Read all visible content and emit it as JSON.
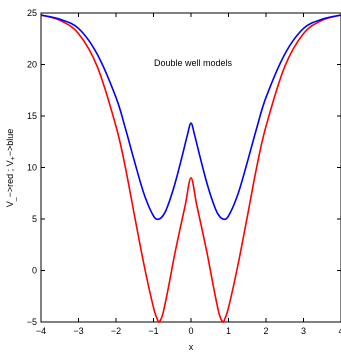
{
  "chart_data": {
    "type": "line",
    "annotation": "Double well models",
    "xlabel": "x",
    "ylabel_parts": [
      "V",
      "_",
      "−>red ; V",
      "+",
      "−>blue"
    ],
    "xlim": [
      -4,
      4
    ],
    "ylim": [
      -5,
      25
    ],
    "grid": false,
    "x_ticks": [
      -4,
      -3,
      -2,
      -1,
      0,
      1,
      2,
      3,
      4
    ],
    "y_ticks": [
      -5,
      0,
      5,
      10,
      15,
      20,
      25
    ],
    "series": [
      {
        "color": "#ff0000",
        "x": [
          -4.0,
          -3.5,
          -3.0,
          -2.5,
          -2.0,
          -1.75,
          -1.5,
          -1.25,
          -1.0,
          -0.9,
          -0.85,
          -0.75,
          -0.6,
          -0.45,
          -0.3,
          -0.15,
          0.0,
          0.15,
          0.3,
          0.45,
          0.6,
          0.75,
          0.85,
          0.9,
          1.0,
          1.25,
          1.5,
          1.75,
          2.0,
          2.5,
          3.0,
          3.5,
          4.0
        ],
        "y": [
          24.8,
          24.3,
          23.0,
          19.8,
          14.0,
          10.0,
          5.2,
          0.5,
          -3.6,
          -4.7,
          -5.0,
          -4.2,
          -1.6,
          1.3,
          3.9,
          6.4,
          9.0,
          6.4,
          3.9,
          1.3,
          -1.6,
          -4.2,
          -5.0,
          -4.7,
          -3.6,
          0.5,
          5.2,
          10.0,
          14.0,
          19.8,
          23.0,
          24.3,
          24.8
        ]
      },
      {
        "color": "#0000ff",
        "x": [
          -4.0,
          -3.5,
          -3.0,
          -2.5,
          -2.0,
          -1.75,
          -1.5,
          -1.25,
          -1.0,
          -0.85,
          -0.7,
          -0.55,
          -0.4,
          -0.25,
          -0.1,
          0.0,
          0.1,
          0.25,
          0.4,
          0.55,
          0.7,
          0.85,
          1.0,
          1.25,
          1.5,
          1.75,
          2.0,
          2.5,
          3.0,
          3.5,
          4.0
        ],
        "y": [
          24.8,
          24.4,
          23.5,
          21.0,
          16.8,
          13.8,
          10.5,
          7.4,
          5.3,
          5.0,
          5.6,
          7.0,
          8.8,
          10.9,
          13.1,
          14.3,
          13.1,
          10.9,
          8.8,
          7.0,
          5.6,
          5.0,
          5.3,
          7.4,
          10.5,
          13.8,
          16.8,
          21.0,
          23.5,
          24.4,
          24.8
        ]
      }
    ]
  }
}
